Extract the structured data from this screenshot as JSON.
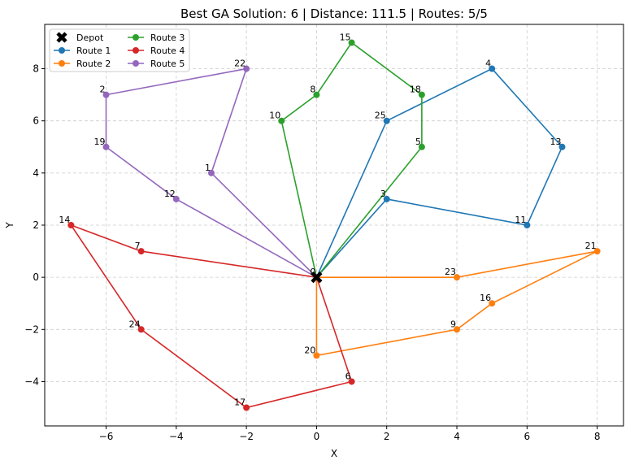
{
  "chart_data": {
    "type": "line",
    "title": "Best GA Solution: 6 | Distance: 111.5 | Routes: 5/5",
    "xlabel": "X",
    "ylabel": "Y",
    "xlim": [
      -7.75,
      8.75
    ],
    "ylim": [
      -5.7,
      9.7
    ],
    "xticks": [
      -6,
      -4,
      -2,
      0,
      2,
      4,
      6,
      8
    ],
    "yticks": [
      -4,
      -2,
      0,
      2,
      4,
      6,
      8
    ],
    "grid": true,
    "legend_position": "top-left",
    "depot": {
      "name": "Depot",
      "id": "0",
      "x": 0,
      "y": 0,
      "color": "#000000"
    },
    "nodes": [
      {
        "id": "1",
        "x": -3,
        "y": 4
      },
      {
        "id": "2",
        "x": -6,
        "y": 7
      },
      {
        "id": "3",
        "x": 2,
        "y": 3
      },
      {
        "id": "4",
        "x": 5,
        "y": 8
      },
      {
        "id": "5",
        "x": 3,
        "y": 5
      },
      {
        "id": "6",
        "x": 1,
        "y": -4
      },
      {
        "id": "7",
        "x": -5,
        "y": 1
      },
      {
        "id": "8",
        "x": 0,
        "y": 7
      },
      {
        "id": "9",
        "x": 4,
        "y": -2
      },
      {
        "id": "10",
        "x": -1,
        "y": 6
      },
      {
        "id": "11",
        "x": 6,
        "y": 2
      },
      {
        "id": "12",
        "x": -4,
        "y": 3
      },
      {
        "id": "13",
        "x": 7,
        "y": 5
      },
      {
        "id": "14",
        "x": -7,
        "y": 2
      },
      {
        "id": "15",
        "x": 1,
        "y": 9
      },
      {
        "id": "16",
        "x": 5,
        "y": -1
      },
      {
        "id": "17",
        "x": -2,
        "y": -5
      },
      {
        "id": "18",
        "x": 3,
        "y": 7
      },
      {
        "id": "19",
        "x": -6,
        "y": 5
      },
      {
        "id": "20",
        "x": 0,
        "y": -3
      },
      {
        "id": "21",
        "x": 8,
        "y": 1
      },
      {
        "id": "22",
        "x": -2,
        "y": 8
      },
      {
        "id": "23",
        "x": 4,
        "y": 0
      },
      {
        "id": "24",
        "x": -5,
        "y": -2
      },
      {
        "id": "25",
        "x": 2,
        "y": 6
      }
    ],
    "series": [
      {
        "name": "Route 1",
        "color": "#1f77b4",
        "sequence": [
          "0",
          "25",
          "4",
          "13",
          "11",
          "3",
          "0"
        ]
      },
      {
        "name": "Route 2",
        "color": "#ff7f0e",
        "sequence": [
          "0",
          "23",
          "21",
          "16",
          "9",
          "20",
          "0"
        ]
      },
      {
        "name": "Route 3",
        "color": "#2ca02c",
        "sequence": [
          "0",
          "10",
          "8",
          "15",
          "18",
          "5",
          "0"
        ]
      },
      {
        "name": "Route 4",
        "color": "#d62728",
        "sequence": [
          "0",
          "7",
          "14",
          "24",
          "17",
          "6",
          "0"
        ]
      },
      {
        "name": "Route 5",
        "color": "#9467bd",
        "sequence": [
          "0",
          "1",
          "22",
          "2",
          "19",
          "12",
          "0"
        ]
      }
    ]
  }
}
